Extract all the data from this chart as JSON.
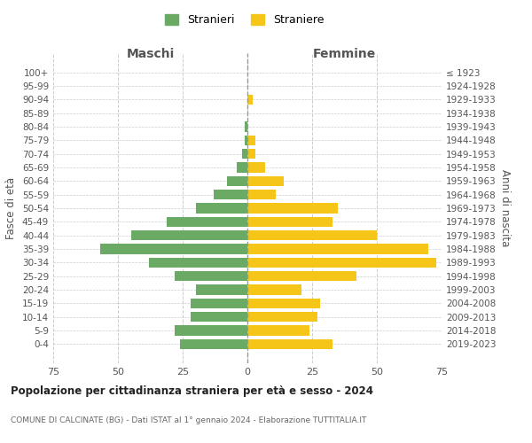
{
  "age_groups": [
    "100+",
    "95-99",
    "90-94",
    "85-89",
    "80-84",
    "75-79",
    "70-74",
    "65-69",
    "60-64",
    "55-59",
    "50-54",
    "45-49",
    "40-44",
    "35-39",
    "30-34",
    "25-29",
    "20-24",
    "15-19",
    "10-14",
    "5-9",
    "0-4"
  ],
  "birth_years": [
    "≤ 1923",
    "1924-1928",
    "1929-1933",
    "1934-1938",
    "1939-1943",
    "1944-1948",
    "1949-1953",
    "1954-1958",
    "1959-1963",
    "1964-1968",
    "1969-1973",
    "1974-1978",
    "1979-1983",
    "1984-1988",
    "1989-1993",
    "1994-1998",
    "1999-2003",
    "2004-2008",
    "2009-2013",
    "2014-2018",
    "2019-2023"
  ],
  "maschi": [
    0,
    0,
    0,
    0,
    1,
    1,
    2,
    4,
    8,
    13,
    20,
    31,
    45,
    57,
    38,
    28,
    20,
    22,
    22,
    28,
    26
  ],
  "femmine": [
    0,
    0,
    2,
    0,
    0,
    3,
    3,
    7,
    14,
    11,
    35,
    33,
    50,
    70,
    73,
    42,
    21,
    28,
    27,
    24,
    33
  ],
  "color_maschi": "#6aaa64",
  "color_femmine": "#f5c518",
  "title": "Popolazione per cittadinanza straniera per età e sesso - 2024",
  "subtitle": "COMUNE DI CALCINATE (BG) - Dati ISTAT al 1° gennaio 2024 - Elaborazione TUTTITALIA.IT",
  "xlabel_left": "Maschi",
  "xlabel_right": "Femmine",
  "ylabel_left": "Fasce di età",
  "ylabel_right": "Anni di nascita",
  "legend_maschi": "Stranieri",
  "legend_femmine": "Straniere",
  "xlim": 75,
  "background_color": "#ffffff",
  "grid_color": "#cccccc"
}
